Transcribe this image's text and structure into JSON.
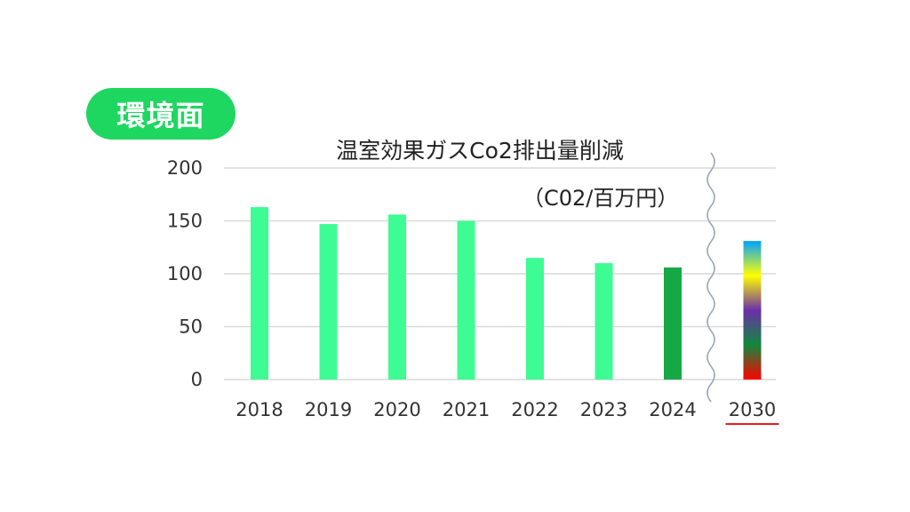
{
  "badge": {
    "label": "環境面",
    "color": "#1ed760"
  },
  "chart_data": {
    "type": "bar",
    "title": "温室効果ガスCo2排出量削減",
    "unit_label": "（C02/百万円）",
    "categories": [
      "2018",
      "2019",
      "2020",
      "2021",
      "2022",
      "2023",
      "2024",
      "2030"
    ],
    "values": [
      163,
      147,
      156,
      150,
      115,
      110,
      106,
      131
    ],
    "ylim": [
      0,
      200
    ],
    "yticks": [
      0,
      50,
      100,
      150,
      200
    ],
    "grid": true,
    "axis_break_before": "2030",
    "highlight_category": "2024",
    "underlined_category": "2030",
    "colors": {
      "bar": "#3dfc93",
      "highlight": "#17a846",
      "target_gradient": [
        "#ff0000",
        "#10893e",
        "#6b2fa8",
        "#ffff00",
        "#00a2ff"
      ],
      "underline": "#e51c23",
      "grid": "#d9d9d9",
      "break_line": "#9aa7b8"
    }
  }
}
